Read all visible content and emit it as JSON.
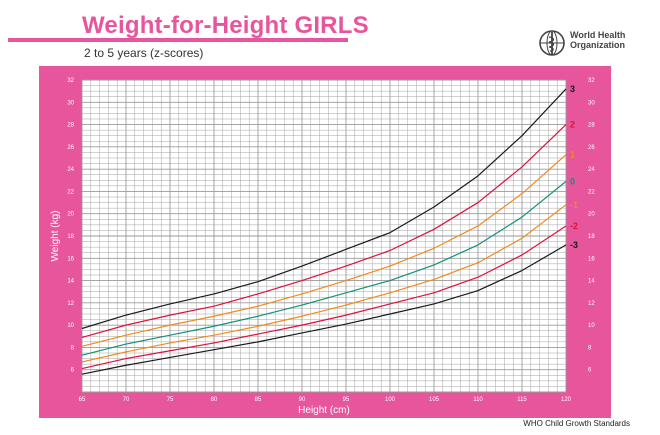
{
  "header": {
    "title": "Weight-for-Height GIRLS",
    "subtitle": "2 to 5 years (z-scores)"
  },
  "organization": {
    "line1": "World Health",
    "line2": "Organization"
  },
  "footer": {
    "text": "WHO Child Growth Standards"
  },
  "colors": {
    "frame": "#e7559c",
    "grid": "#9a9a9a",
    "title": "#e7559c"
  },
  "chart_data": {
    "type": "line",
    "xlabel": "Height (cm)",
    "ylabel": "Weight (kg)",
    "xlim": [
      65,
      120
    ],
    "ylim": [
      4,
      32
    ],
    "x_ticks": [
      65,
      70,
      75,
      80,
      85,
      90,
      95,
      100,
      105,
      110,
      115,
      120
    ],
    "y_ticks": [
      6,
      8,
      10,
      12,
      14,
      16,
      18,
      20,
      22,
      24,
      26,
      28,
      30,
      32
    ],
    "grid": true,
    "legend": "right",
    "x": [
      65,
      70,
      75,
      80,
      85,
      90,
      95,
      100,
      105,
      110,
      115,
      120
    ],
    "series": [
      {
        "name": "3",
        "color": "#1a1a1a",
        "values": [
          9.7,
          10.9,
          11.9,
          12.8,
          13.9,
          15.3,
          16.8,
          18.3,
          20.6,
          23.4,
          27.0,
          31.2
        ]
      },
      {
        "name": "2",
        "color": "#e0103c",
        "values": [
          8.9,
          10.0,
          10.9,
          11.7,
          12.8,
          14.0,
          15.3,
          16.7,
          18.6,
          21.0,
          24.2,
          28.0
        ]
      },
      {
        "name": "1",
        "color": "#f08a1c",
        "values": [
          8.1,
          9.1,
          10.0,
          10.8,
          11.7,
          12.8,
          14.0,
          15.3,
          16.9,
          18.9,
          21.8,
          25.3
        ]
      },
      {
        "name": "0",
        "color": "#14907a",
        "values": [
          7.3,
          8.3,
          9.1,
          9.9,
          10.8,
          11.8,
          12.9,
          14.0,
          15.4,
          17.2,
          19.7,
          22.9
        ]
      },
      {
        "name": "-1",
        "color": "#f08a1c",
        "values": [
          6.7,
          7.6,
          8.4,
          9.1,
          9.9,
          10.8,
          11.8,
          12.9,
          14.1,
          15.6,
          17.8,
          20.8
        ]
      },
      {
        "name": "-2",
        "color": "#e0103c",
        "values": [
          6.1,
          7.0,
          7.7,
          8.4,
          9.2,
          10.0,
          10.9,
          11.9,
          12.9,
          14.3,
          16.3,
          18.9
        ]
      },
      {
        "name": "-3",
        "color": "#1a1a1a",
        "values": [
          5.6,
          6.4,
          7.1,
          7.8,
          8.5,
          9.3,
          10.1,
          11.0,
          11.9,
          13.1,
          14.9,
          17.2
        ]
      }
    ]
  }
}
